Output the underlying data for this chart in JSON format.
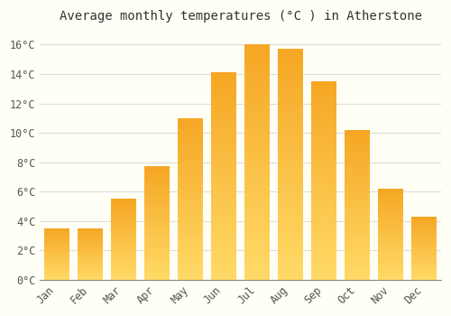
{
  "title": "Average monthly temperatures (°C ) in Atherstone",
  "months": [
    "Jan",
    "Feb",
    "Mar",
    "Apr",
    "May",
    "Jun",
    "Jul",
    "Aug",
    "Sep",
    "Oct",
    "Nov",
    "Dec"
  ],
  "values": [
    3.5,
    3.5,
    5.5,
    7.7,
    11.0,
    14.1,
    16.0,
    15.7,
    13.5,
    10.2,
    6.2,
    4.3
  ],
  "bar_color_top": "#F5A623",
  "bar_color_bottom": "#FFD966",
  "background_color": "#FFFFF5",
  "grid_color": "#DDDDDD",
  "ylim": [
    0,
    17
  ],
  "yticks": [
    0,
    2,
    4,
    6,
    8,
    10,
    12,
    14,
    16
  ],
  "title_fontsize": 10,
  "tick_fontsize": 8.5,
  "font_family": "monospace"
}
